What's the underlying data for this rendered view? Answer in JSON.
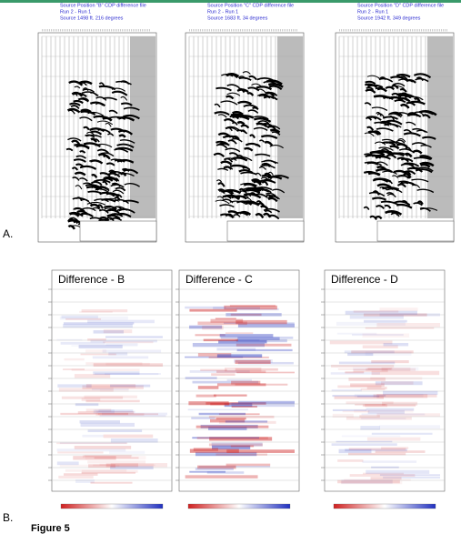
{
  "figure": {
    "panel_a": {
      "label": "A.",
      "plots": [
        {
          "lines": [
            "Source Position \"B\" CDP difference file",
            "Run 2 - Run 1",
            "Source 1498 ft. 216 degrees"
          ]
        },
        {
          "lines": [
            "Source Position \"C\" CDP difference file",
            "Run 2 - Run 1",
            "Source 1683 ft. 34 degrees"
          ]
        },
        {
          "lines": [
            "Source Position \"D\" CDP difference file",
            "Run 2 - Run 1",
            "Source 1942 ft. 349 degrees"
          ]
        }
      ]
    },
    "panel_b": {
      "label": "B.",
      "plots": [
        {
          "title": "Difference - B"
        },
        {
          "title": "Difference - C"
        },
        {
          "title": "Difference - D"
        }
      ]
    },
    "caption": "Figure 5"
  }
}
